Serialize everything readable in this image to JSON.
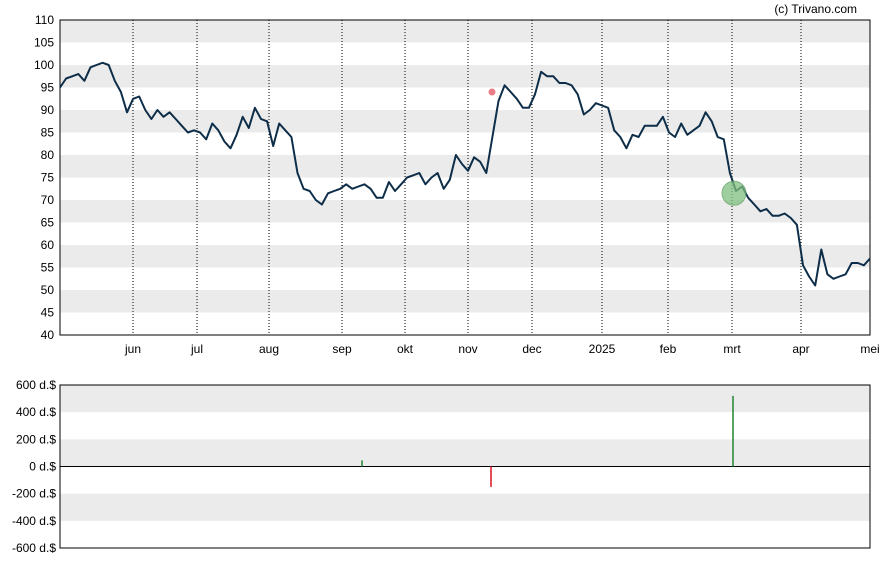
{
  "credit": "(c) Trivano.com",
  "colors": {
    "price_line": "#0d2d48",
    "band": "#ebebeb",
    "buy_bar": "#2e8b3e",
    "sell_bar": "#e0202f",
    "marker_buy": "#7fbf7f",
    "marker_sell": "#e8707a",
    "frame": "#000000"
  },
  "chart_data": [
    {
      "type": "line",
      "name": "price",
      "ylim": [
        40,
        110
      ],
      "yticks": [
        40,
        45,
        50,
        55,
        60,
        65,
        70,
        75,
        80,
        85,
        90,
        95,
        100,
        105,
        110
      ],
      "x_tick_labels": [
        "jun",
        "jul",
        "aug",
        "sep",
        "okt",
        "nov",
        "dec",
        "2025",
        "feb",
        "mrt",
        "apr",
        "mei"
      ],
      "grid": "horizontal bands, dotted vertical month lines",
      "values": [
        95,
        97,
        97.5,
        98,
        96.5,
        99.5,
        100,
        100.5,
        100,
        96.5,
        94,
        89.5,
        92.5,
        93,
        90,
        88,
        90,
        88.5,
        89.5,
        88,
        86.5,
        85,
        85.5,
        85,
        83.5,
        87,
        85.5,
        83,
        81.5,
        84.5,
        88.5,
        86,
        90.5,
        88,
        87.5,
        82,
        87,
        85.5,
        84,
        76,
        72.5,
        72,
        70,
        69,
        71.5,
        72,
        72.5,
        73.5,
        72.5,
        73,
        73.5,
        72.5,
        70.5,
        70.5,
        74,
        72,
        73.5,
        75,
        75.5,
        76,
        73.5,
        75,
        76,
        72.5,
        74.5,
        80,
        78,
        76.5,
        79.5,
        78.5,
        76,
        84,
        92,
        95.5,
        94,
        92.5,
        90.5,
        90.5,
        93.5,
        98.5,
        97.5,
        97.5,
        96,
        96,
        95.5,
        93.5,
        89,
        90,
        91.5,
        91,
        90.5,
        85.5,
        84,
        81.5,
        84.5,
        84,
        86.5,
        86.5,
        86.5,
        88.5,
        85,
        84,
        87,
        84.5,
        85.5,
        86.5,
        89.5,
        87.5,
        84,
        83.5,
        76,
        72,
        73,
        70.5,
        69,
        67.5,
        68,
        66.5,
        66.5,
        67,
        66,
        64.5,
        55.5,
        53,
        51,
        59,
        53.5,
        52.5,
        53,
        53.5,
        56,
        56,
        55.5,
        57
      ]
    },
    {
      "type": "bar",
      "name": "transactions",
      "ylim": [
        -600,
        600
      ],
      "yticks": [
        600,
        400,
        200,
        0,
        -200,
        -400,
        -600
      ],
      "ytick_labels": [
        "600 d.$",
        "400 d.$",
        "200 d.$",
        "0 d.$",
        "-200 d.$",
        "-400 d.$",
        "-600 d.$"
      ],
      "bars": [
        {
          "date": "sep",
          "value": 45,
          "kind": "buy"
        },
        {
          "date": "nov",
          "value": -150,
          "kind": "sell"
        },
        {
          "date": "mrt",
          "value": 520,
          "kind": "buy"
        }
      ]
    }
  ]
}
